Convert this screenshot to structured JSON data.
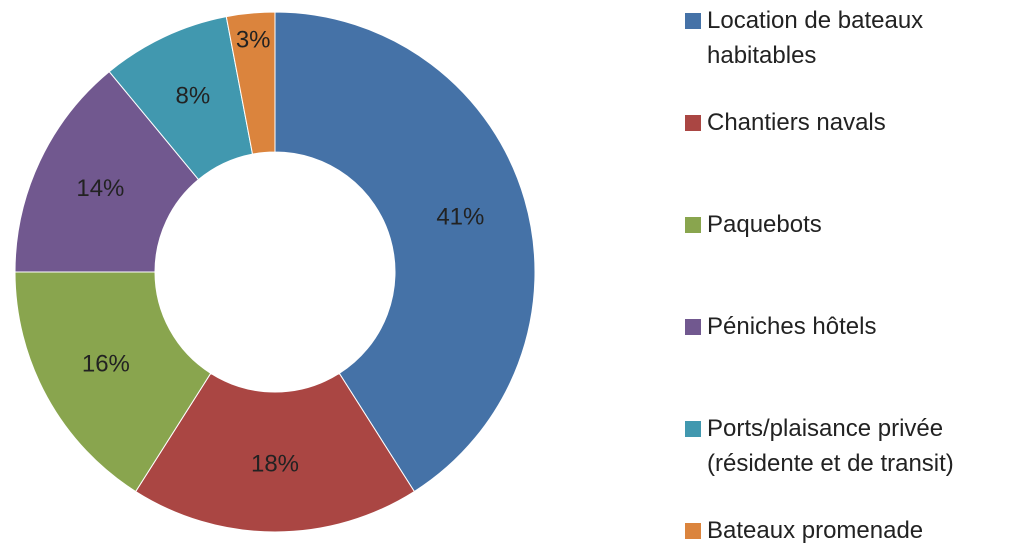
{
  "chart_data": {
    "type": "donut",
    "categories": [
      "Location de bateaux habitables",
      "Chantiers navals",
      "Paquebots",
      "Péniches hôtels",
      "Ports/plaisance privée (résidente et de transit)",
      "Bateaux promenade"
    ],
    "values": [
      41,
      18,
      16,
      14,
      8,
      3
    ],
    "value_labels": [
      "41%",
      "18%",
      "16%",
      "14%",
      "8%",
      "3%"
    ],
    "colors": [
      "#4572a7",
      "#aa4643",
      "#89a54e",
      "#71588f",
      "#4198af",
      "#db843d"
    ],
    "legend": "right"
  }
}
